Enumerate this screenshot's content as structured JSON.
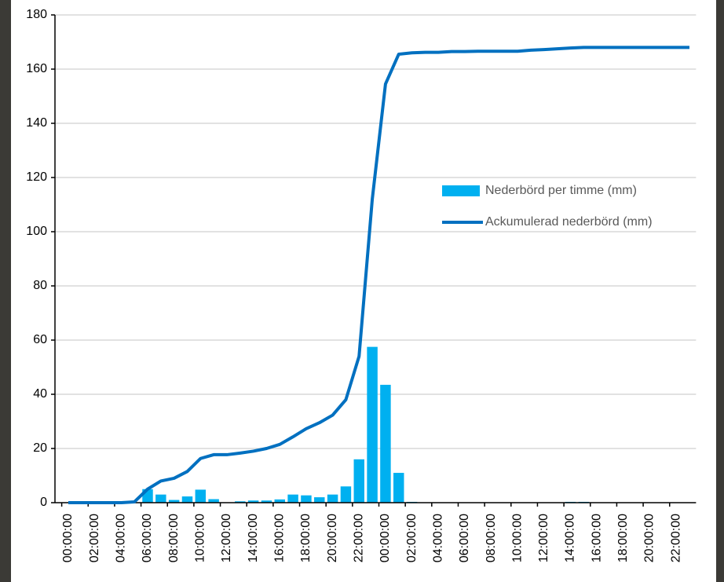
{
  "chart_data": {
    "type": "bar_line",
    "categories": [
      "00:00:00",
      null,
      "02:00:00",
      null,
      "04:00:00",
      null,
      "06:00:00",
      null,
      "08:00:00",
      null,
      "10:00:00",
      null,
      "12:00:00",
      null,
      "14:00:00",
      null,
      "16:00:00",
      null,
      "18:00:00",
      null,
      "20:00:00",
      null,
      "22:00:00",
      null,
      "00:00:00",
      null,
      "02:00:00",
      null,
      "04:00:00",
      null,
      "06:00:00",
      null,
      "08:00:00",
      null,
      "10:00:00",
      null,
      "12:00:00",
      null,
      "14:00:00",
      null,
      "16:00:00",
      null,
      "18:00:00",
      null,
      "20:00:00",
      null,
      "22:00:00",
      null
    ],
    "series": [
      {
        "name": "Nederbörd per timme (mm)",
        "kind": "bar",
        "color": "#00b0f0",
        "values": [
          0,
          0,
          0,
          0,
          0,
          0,
          5,
          3,
          1,
          2.3,
          4.8,
          1.3,
          0,
          0.5,
          0.8,
          0.8,
          1.2,
          3,
          2.7,
          2,
          3,
          6,
          16,
          57.5,
          43.5,
          11,
          0.3,
          0,
          0,
          0,
          0,
          0,
          0,
          0,
          0,
          0,
          0,
          0,
          0.3,
          0.3,
          0,
          0,
          0,
          0,
          0,
          0,
          0,
          0
        ]
      },
      {
        "name": "Ackumulerad nederbörd (mm)",
        "kind": "line",
        "color": "#0070c0",
        "values": [
          0,
          0,
          0,
          0,
          0,
          0.3,
          5,
          8,
          9,
          11.5,
          16.3,
          17.7,
          17.7,
          18.3,
          19,
          20,
          21.5,
          24.3,
          27.3,
          29.5,
          32.3,
          38,
          54,
          112,
          154.5,
          165.5,
          166,
          166.2,
          166.2,
          166.5,
          166.5,
          166.6,
          166.6,
          166.6,
          166.6,
          167,
          167.2,
          167.5,
          167.8,
          168,
          168,
          168,
          168,
          168,
          168,
          168,
          168,
          168
        ]
      }
    ],
    "ylim": [
      0,
      180
    ],
    "yticks": [
      0,
      20,
      40,
      60,
      80,
      100,
      120,
      140,
      160,
      180
    ],
    "grid": true,
    "legend": "right"
  }
}
